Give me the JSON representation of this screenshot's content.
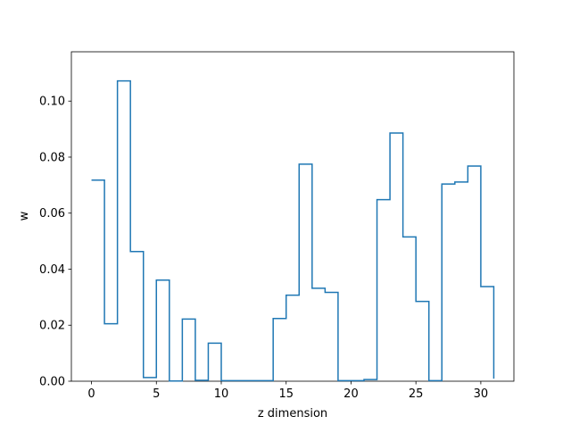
{
  "chart_data": {
    "type": "line",
    "step": "post",
    "title": "",
    "xlabel": "z dimension",
    "ylabel": "w",
    "xlim": [
      -1.55,
      32.55
    ],
    "ylim": [
      0.0,
      0.1176
    ],
    "xticks": [
      0,
      5,
      10,
      15,
      20,
      25,
      30
    ],
    "xtick_labels": [
      "0",
      "5",
      "10",
      "15",
      "20",
      "25",
      "30"
    ],
    "yticks": [
      0.0,
      0.02,
      0.04,
      0.06,
      0.08,
      0.1
    ],
    "ytick_labels": [
      "0.00",
      "0.02",
      "0.04",
      "0.06",
      "0.08",
      "0.10"
    ],
    "grid": false,
    "legend": "none",
    "series": [
      {
        "color": "#1f77b4",
        "x": [
          0,
          1,
          2,
          3,
          4,
          5,
          6,
          7,
          8,
          9,
          10,
          11,
          12,
          13,
          14,
          15,
          16,
          17,
          18,
          19,
          20,
          21,
          22,
          23,
          24,
          25,
          26,
          27,
          28,
          29,
          30,
          31
        ],
        "values": [
          0.0718,
          0.0205,
          0.1072,
          0.0463,
          0.0013,
          0.0361,
          0.0001,
          0.0222,
          0.0003,
          0.0136,
          0.0002,
          0.0002,
          0.0002,
          0.0002,
          0.0224,
          0.0307,
          0.0775,
          0.0332,
          0.0317,
          0.0002,
          0.0002,
          0.0006,
          0.0648,
          0.0886,
          0.0515,
          0.0285,
          0.0002,
          0.0704,
          0.0711,
          0.0768,
          0.0338,
          0.0009
        ]
      }
    ]
  }
}
